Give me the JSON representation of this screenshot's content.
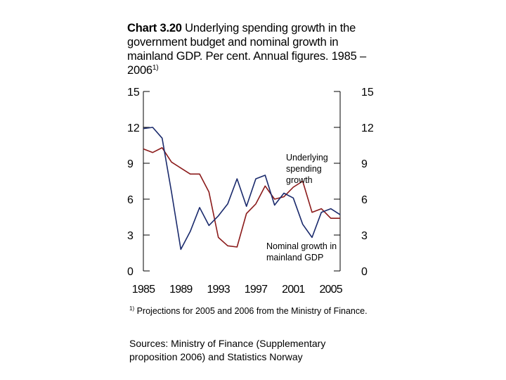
{
  "title": {
    "bold": "Chart 3.20",
    "text": " Underlying spending growth in the government budget and nominal growth in mainland GDP. Per cent. Annual figures. 1985 – 2006",
    "sup": "1)"
  },
  "footnote": {
    "sup": "1)",
    "text": " Projections for 2005 and 2006 from the Ministry of Finance."
  },
  "sources": "Sources: Ministry of Finance (Supplementary proposition 2006) and Statistics Norway",
  "colors": {
    "underlying": "#8b1a1a",
    "nominal": "#1a2a6c",
    "axis": "#000000"
  },
  "chart_data": {
    "type": "line",
    "title": "",
    "xlabel": "",
    "ylabel": "",
    "x": [
      1985,
      1986,
      1987,
      1988,
      1989,
      1990,
      1991,
      1992,
      1993,
      1994,
      1995,
      1996,
      1997,
      1998,
      1999,
      2000,
      2001,
      2002,
      2003,
      2004,
      2005,
      2006
    ],
    "xticks": [
      "1985",
      "1989",
      "1993",
      "1997",
      "2001",
      "2005"
    ],
    "xtick_values": [
      1985,
      1989,
      1993,
      1997,
      2001,
      2005
    ],
    "ylim": [
      0,
      15
    ],
    "yticks": [
      "0",
      "3",
      "6",
      "9",
      "12",
      "15"
    ],
    "ytick_values": [
      0,
      3,
      6,
      9,
      12,
      15
    ],
    "series": [
      {
        "name": "Underlying spending growth",
        "color_key": "underlying",
        "values": [
          10.2,
          9.9,
          10.3,
          9.1,
          8.6,
          8.1,
          8.1,
          6.6,
          2.8,
          2.1,
          2.0,
          4.8,
          5.6,
          7.1,
          6.0,
          6.2,
          7.0,
          7.5,
          4.9,
          5.2,
          4.4,
          4.4
        ]
      },
      {
        "name": "Nominal growth in mainland GDP",
        "color_key": "nominal",
        "values": [
          11.9,
          12.0,
          11.1,
          6.6,
          1.8,
          3.3,
          5.3,
          3.8,
          4.6,
          5.6,
          7.7,
          5.4,
          7.7,
          8.0,
          5.5,
          6.5,
          6.1,
          3.9,
          2.8,
          4.9,
          5.2,
          4.7
        ]
      }
    ],
    "annotations": [
      {
        "lines": [
          "Underlying",
          "spending",
          "growth"
        ],
        "series": 0
      },
      {
        "lines": [
          "Nominal growth in",
          "mainland GDP"
        ],
        "series": 1
      }
    ],
    "grid": false,
    "legend": "none"
  }
}
